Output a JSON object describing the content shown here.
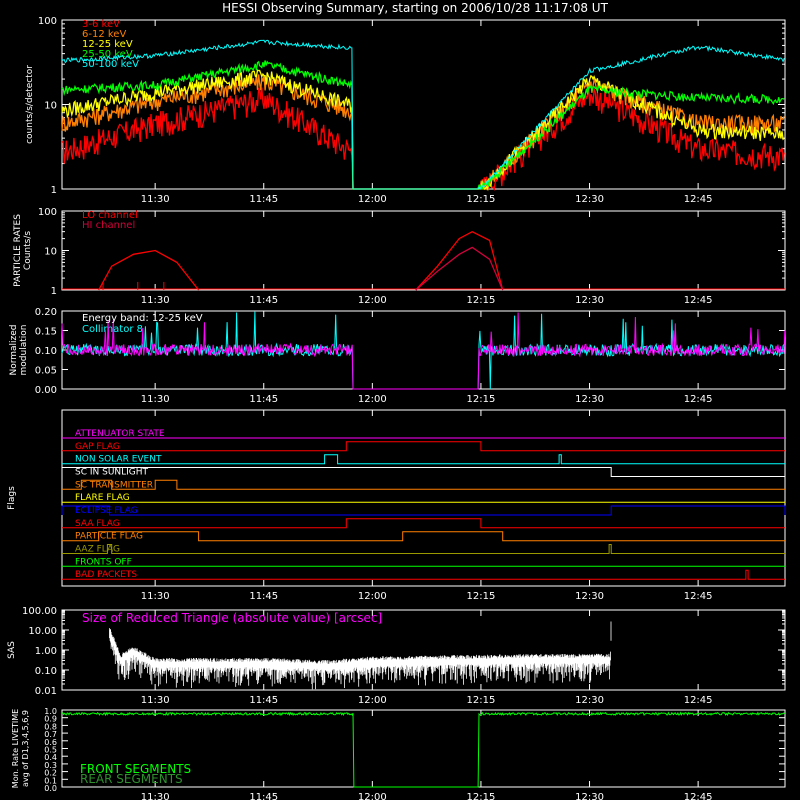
{
  "title": "HESSI Observing Summary, starting on 2006/10/28 11:17:08 UT",
  "colors": {
    "red": "#ff0000",
    "orange": "#ff8000",
    "yellow": "#ffff00",
    "green": "#00ff00",
    "cyan": "#00ffff",
    "magenta": "#ff00ff",
    "blue": "#0000ff",
    "olive": "#9a9a00",
    "crimson": "#d2003c",
    "white": "#ffffff"
  },
  "chart_data": [
    {
      "type": "line",
      "ylabel": "counts/s/detector",
      "yscale": "log",
      "ylim": [
        1,
        100
      ],
      "yticks": [
        "1",
        "10",
        "100"
      ],
      "xticks": [
        "11:30",
        "11:45",
        "12:00",
        "12:15",
        "12:30",
        "12:45"
      ],
      "x_hours": [
        11.2856,
        11.5,
        11.75,
        12.0,
        12.25,
        12.5,
        12.75,
        12.95
      ],
      "series": [
        {
          "name": "3-6 keV",
          "color": "red",
          "values": [
            2.8,
            6,
            12,
            2,
            1,
            14,
            3,
            2.5
          ]
        },
        {
          "name": "6-12 keV",
          "color": "orange",
          "values": [
            6,
            11,
            19,
            7,
            1,
            18,
            6,
            6
          ]
        },
        {
          "name": "12-25 keV",
          "color": "yellow",
          "values": [
            8.5,
            14,
            22,
            8,
            1,
            20,
            5,
            4.5
          ]
        },
        {
          "name": "25-50 keV",
          "color": "green",
          "values": [
            15,
            17,
            30,
            15,
            1,
            15,
            12,
            11.5
          ]
        },
        {
          "name": "50-100 keV",
          "color": "cyan",
          "values": [
            33,
            38,
            55,
            45,
            1,
            25,
            48,
            34
          ]
        }
      ]
    },
    {
      "type": "line",
      "ylabel": "PARTICLE RATES Counts/s",
      "yscale": "log",
      "ylim": [
        1,
        100
      ],
      "yticks": [
        "1",
        "10",
        "100"
      ],
      "xticks": [
        "11:30",
        "11:45",
        "12:00",
        "12:15",
        "12:30",
        "12:45"
      ],
      "series": [
        {
          "name": "LO channel",
          "color": "red",
          "x_hours": [
            11.34,
            11.37,
            11.4,
            11.45,
            11.5,
            11.55,
            11.6,
            12.1,
            12.15,
            12.2,
            12.23,
            12.27,
            12.3
          ],
          "values": [
            1,
            1,
            4,
            8,
            10,
            5,
            1,
            1,
            4,
            20,
            30,
            18,
            1
          ]
        },
        {
          "name": "HI channel",
          "color": "crimson",
          "x_hours": [
            12.1,
            12.15,
            12.2,
            12.23,
            12.27,
            12.3
          ],
          "values": [
            1,
            3,
            8,
            12,
            6,
            1
          ]
        }
      ]
    },
    {
      "type": "line",
      "ylabel": "Normalized modulation",
      "ylim": [
        0,
        0.2
      ],
      "yticks": [
        "0.00",
        "0.05",
        "0.10",
        "0.15",
        "0.20"
      ],
      "xticks": [
        "11:30",
        "11:45",
        "12:00",
        "12:15",
        "12:30",
        "12:45"
      ],
      "annotation": "Energy band: 12-25 keV",
      "series": [
        {
          "name": "Collimator 8",
          "color": "cyan",
          "baseline": 0.1
        },
        {
          "name": "",
          "color": "magenta",
          "baseline": 0.1
        }
      ]
    },
    {
      "type": "timeline",
      "ylabel": "Flags",
      "xticks": [
        "11:30",
        "11:45",
        "12:00",
        "12:15",
        "12:30",
        "12:45"
      ],
      "flags": [
        {
          "name": "ATTENUATOR STATE",
          "color": "magenta",
          "on": []
        },
        {
          "name": "GAP FLAG",
          "color": "red",
          "on": [
            [
              11.94,
              12.25
            ]
          ]
        },
        {
          "name": "NON SOLAR EVENT",
          "color": "cyan",
          "on": [
            [
              11.89,
              11.92
            ],
            [
              12.43,
              12.435
            ]
          ]
        },
        {
          "name": "SC IN SUNLIGHT",
          "color": "white",
          "on": [
            [
              11.2856,
              12.55
            ]
          ]
        },
        {
          "name": "SC TRANSMITTER",
          "color": "orange",
          "on": [
            [
              11.33,
              11.4
            ],
            [
              11.5,
              11.55
            ]
          ]
        },
        {
          "name": "FLARE FLAG",
          "color": "yellow",
          "on": []
        },
        {
          "name": "ECLIPSE FLAG",
          "color": "blue",
          "on": [
            [
              11.2856,
              11.395
            ],
            [
              12.55,
              12.95
            ]
          ]
        },
        {
          "name": "SAA FLAG",
          "color": "red",
          "on": [
            [
              11.94,
              12.25
            ]
          ]
        },
        {
          "name": "PARTICLE FLAG",
          "color": "orange",
          "on": [
            [
              11.37,
              11.6
            ],
            [
              12.07,
              12.3
            ]
          ]
        },
        {
          "name": "AAZ FLAG",
          "color": "olive",
          "on": [
            [
              11.39,
              11.4
            ],
            [
              12.545,
              12.55
            ]
          ]
        },
        {
          "name": "FRONTS OFF",
          "color": "green",
          "on": []
        },
        {
          "name": "BAD PACKETS",
          "color": "red",
          "on": [
            [
              12.86,
              12.865
            ]
          ]
        }
      ]
    },
    {
      "type": "line",
      "ylabel": "SAS",
      "yscale": "log",
      "ylim": [
        0.01,
        100
      ],
      "yticks": [
        "0.01",
        "0.10",
        "1.00",
        "10.00",
        "100.00"
      ],
      "xticks": [
        "11:30",
        "11:45",
        "12:00",
        "12:15",
        "12:30",
        "12:45"
      ],
      "series": [
        {
          "name": "Size of Reduced Triangle (absolute value) [arcsec]",
          "color": "white",
          "x_hours": [
            11.395,
            11.42,
            11.45,
            11.5,
            11.75,
            11.9,
            12.0,
            12.2,
            12.4,
            12.548,
            12.55
          ],
          "values": [
            10,
            0.4,
            1,
            0.25,
            0.25,
            0.2,
            0.3,
            0.35,
            0.4,
            0.4,
            100
          ]
        }
      ]
    },
    {
      "type": "line",
      "ylabel": "Mon. Rate LIVETIME avg of D1,3,4,5,6,9",
      "ylim": [
        0,
        1
      ],
      "yticks": [
        "0.0",
        "0.1",
        "0.2",
        "0.3",
        "0.4",
        "0.5",
        "0.6",
        "0.7",
        "0.8",
        "0.9",
        "1.0"
      ],
      "xticks": [
        "11:30",
        "11:45",
        "12:00",
        "12:15",
        "12:30",
        "12:45"
      ],
      "series": [
        {
          "name": "FRONT SEGMENTS",
          "color": "green",
          "x_hours": [
            11.2856,
            11.95,
            11.96,
            12.25,
            12.26,
            12.95
          ],
          "values": [
            0.97,
            0.96,
            0,
            0,
            0.97,
            0.97
          ]
        },
        {
          "name": "REAR SEGMENTS",
          "color": "green",
          "values": []
        }
      ]
    }
  ]
}
